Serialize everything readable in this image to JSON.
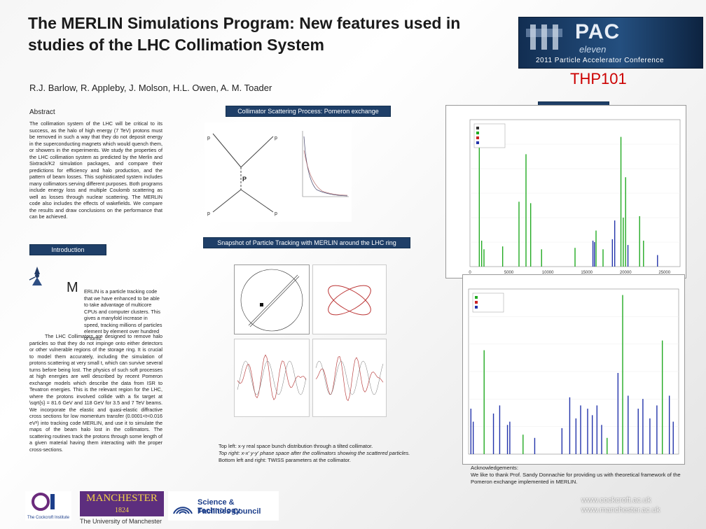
{
  "title": "The MERLIN Simulations Program: New features used in studies of the LHC Collimation System",
  "authors": "R.J. Barlow, R. Appleby, J. Molson, H.L. Owen, A. M. Toader",
  "poster_id": "THP101",
  "conference_logo": {
    "word": "PAC",
    "subtitle": "eleven",
    "line": "2011 Particle Accelerator Conference"
  },
  "abstract": {
    "heading": "Abstract",
    "text": "The collimation system of the LHC will be critical to its success, as the halo of high energy (7 TeV) protons must be removed in such a way that they do not deposit energy in the superconducting magnets which would quench them, or showers in the experiments. We study the properties of the LHC collimation system as predicted by the Merlin and Sixtrack/K2 simulation packages, and compare their predictions for efficiency and halo production, and the pattern of beam losses. This sophisticated system includes many collimators serving different purposes. Both programs include energy loss and multiple Coulomb scattering as well as losses through nuclear scattering. The MERLIN code also includes the effects of wakefields. We compare the results and draw conclusions on the performance that can be achieved."
  },
  "introduction": {
    "heading": "Introduction",
    "dropcap": "M",
    "para1": "ERLIN is a particle tracking code that we have enhanced to be able to take advantage of multicore CPUs and computer clusters. This gives a manyfold increase in speed, tracking millions of particles element by element over hundred of turns.",
    "para2": "The LHC Collimators are designed to remove halo particles so that they do not impinge onto either detectors or other vulnerable regions of the storage ring. It is crucial to model them accurately, including the simulation of protons scattering at very small t, which can survive several turns before being lost. The physics of such soft processes at high energies are well described by recent Pomeron exchange models which describe the data from ISR to Tevatron energies. This is the relevant region for the LHC, where the protons involved collide with a fix target at \\sqrt{s} = 81.6 GeV and 118 GeV for 3.5 and 7 TeV beams. We incorporate the elastic and quasi-elastic diffractive cross sections for low momentum transfer (0.0001<t<0.016 eV²) into tracking code MERLIN, and use it to simulate the maps of the beam halo lost in the collimators. The scattering routines track the protons through some length of a given material having them interacting with the proper cross-sections."
  },
  "sections": {
    "pomeron": "Collimator Scattering Process: Pomeron exchange",
    "tracking": "Snapshot of Particle Tracking with MERLIN around the LHC ring",
    "loss_map_tab": ""
  },
  "caption": {
    "line1": "Top left: x-y real space bunch distribution through a tilted collimator.",
    "line2": "Top right: x-x' y-y' phase space after the collimators showing the scattered particles.",
    "line3": "Bottom left and right: TWISS parameters at the collimator."
  },
  "acknowledgements": {
    "heading": "Acknowledgements:",
    "text": "We like to thank Prof. Sandy Donnachie for providing us with theoretical framework of the Pomeron exchange implemented in MERLIN."
  },
  "urls": [
    "www.cockcroft.ac.uk",
    "www.manchester.ac.uk"
  ],
  "footer_logos": {
    "cockcroft": "The Cockcroft Institute",
    "manchester_word": "MANCHESTER",
    "manchester_year": "1824",
    "manchester_sub": "The University of Manchester",
    "stfc_line1": "Science & Technology",
    "stfc_line2": "Facilities Council"
  },
  "colors": {
    "banner": "#1f3f68",
    "poster_id": "#cc0000",
    "loss_green": "#22aa22",
    "loss_blue": "#2233aa",
    "loss_red": "#cc2222"
  },
  "chart_data": [
    {
      "type": "bar",
      "title": "",
      "legend": [
        "",
        "",
        "",
        ""
      ],
      "legend_colors": [
        "#333333",
        "#22aa22",
        "#cc2222",
        "#2233aa"
      ],
      "x_ticks": [
        "0",
        "5000",
        "10000",
        "15000",
        "20000",
        "25000"
      ],
      "xlim": [
        0,
        27000
      ],
      "spikes_x": [
        1200,
        1500,
        1800,
        4200,
        6300,
        7200,
        7800,
        9200,
        13500,
        15800,
        16000,
        16200,
        17100,
        18300,
        18600,
        19400,
        19700,
        20000,
        20300,
        21800,
        22300,
        24100
      ],
      "spikes_level": [
        0.92,
        0.18,
        0.12,
        0.14,
        0.45,
        0.78,
        0.44,
        0.12,
        0.13,
        0.18,
        0.17,
        0.25,
        0.12,
        0.19,
        0.32,
        0.9,
        0.34,
        0.62,
        0.15,
        0.35,
        0.18,
        0.08
      ],
      "spikes_color": [
        "green",
        "green",
        "green",
        "green",
        "green",
        "green",
        "green",
        "green",
        "green",
        "blue",
        "blue",
        "green",
        "green",
        "blue",
        "blue",
        "green",
        "green",
        "green",
        "blue",
        "green",
        "green",
        "blue"
      ]
    },
    {
      "type": "bar",
      "title": "",
      "legend": [
        "",
        "",
        ""
      ],
      "legend_colors": [
        "#22aa22",
        "#cc2222",
        "#2233aa"
      ],
      "x_ticks": [],
      "xlim": [
        0,
        27000
      ],
      "spikes_x": [
        300,
        600,
        2000,
        3200,
        4000,
        5000,
        5300,
        7000,
        8500,
        12000,
        13000,
        13800,
        14400,
        15300,
        15900,
        16500,
        17100,
        17800,
        19200,
        19800,
        20500,
        21800,
        22400,
        23300,
        24200,
        24900,
        25800,
        26300
      ],
      "spikes_level": [
        0.28,
        0.2,
        0.64,
        0.25,
        0.3,
        0.18,
        0.2,
        0.12,
        0.1,
        0.16,
        0.35,
        0.22,
        0.3,
        0.28,
        0.24,
        0.3,
        0.18,
        0.1,
        0.5,
        0.98,
        0.36,
        0.28,
        0.34,
        0.22,
        0.3,
        0.7,
        0.36,
        0.2
      ],
      "spikes_color": [
        "blue",
        "blue",
        "green",
        "blue",
        "blue",
        "blue",
        "blue",
        "green",
        "blue",
        "blue",
        "blue",
        "blue",
        "blue",
        "blue",
        "blue",
        "blue",
        "blue",
        "green",
        "blue",
        "green",
        "blue",
        "blue",
        "blue",
        "blue",
        "blue",
        "green",
        "blue",
        "blue"
      ]
    }
  ]
}
